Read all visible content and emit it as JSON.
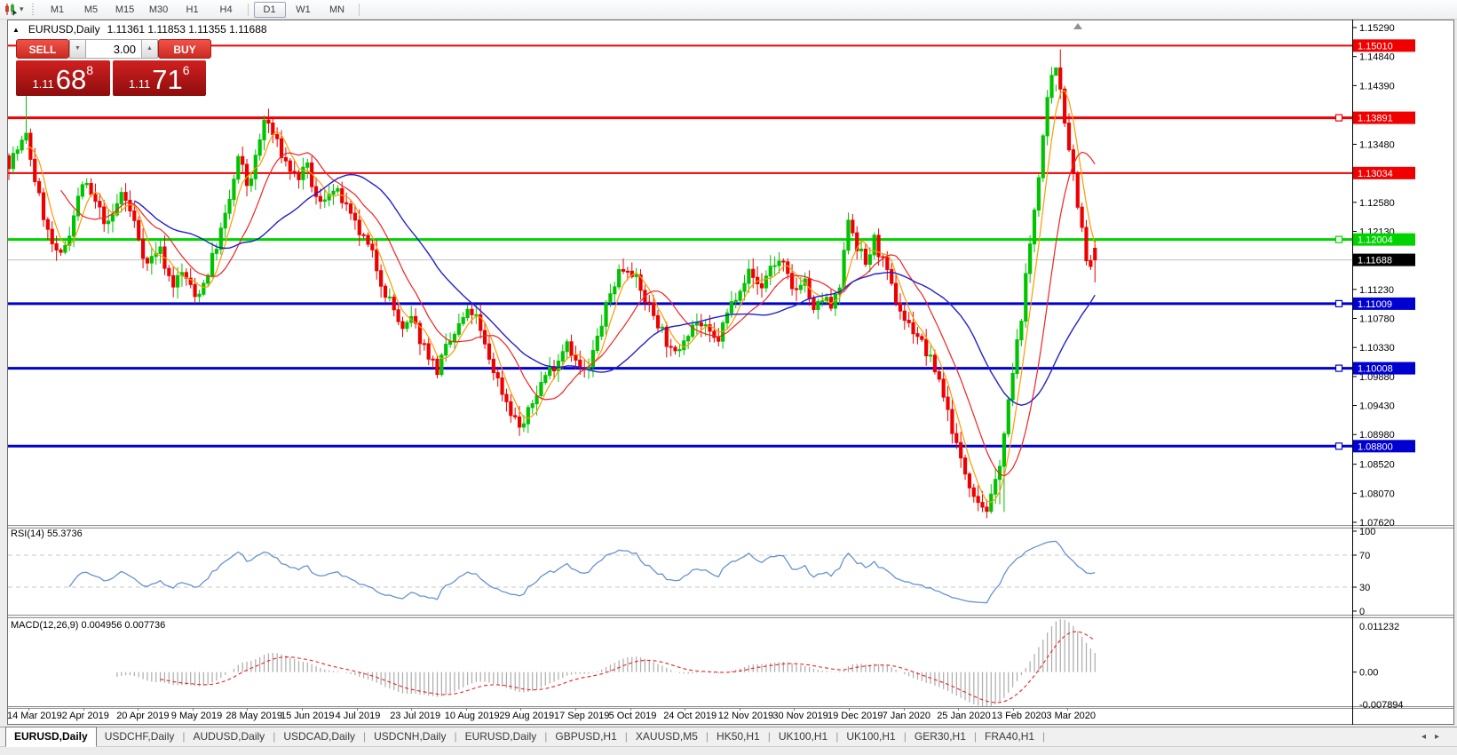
{
  "icons": {
    "collapse": "▲",
    "caret": "▾",
    "spin_up": "▲",
    "spin_down": "▼",
    "tab_left": "◂",
    "tab_right": "▸"
  },
  "toolbar": {
    "timeframes": [
      "M1",
      "M5",
      "M15",
      "M30",
      "H1",
      "H4",
      "D1",
      "W1",
      "MN"
    ],
    "active_timeframe": "D1"
  },
  "window": {
    "title_symbol": "EURUSD,Daily",
    "title_ohlc": "1.11361 1.11853 1.11355 1.11688"
  },
  "trade": {
    "sell_label": "SELL",
    "buy_label": "BUY",
    "volume": "3.00",
    "sell_price_prefix": "1.11",
    "sell_price_main": "68",
    "sell_price_sup": "8",
    "buy_price_prefix": "1.11",
    "buy_price_main": "71",
    "buy_price_sup": "6"
  },
  "price_axis": {
    "ticks": [
      "1.15290",
      "1.14840",
      "1.14390",
      "1.13480",
      "1.12580",
      "1.12130",
      "1.11230",
      "1.10780",
      "1.10330",
      "1.09880",
      "1.09430",
      "1.08980",
      "1.08520",
      "1.08070",
      "1.07620"
    ]
  },
  "levels": [
    {
      "text": "1.15010",
      "value": 1.1501,
      "color": "#f00000",
      "width": 2,
      "handle": false
    },
    {
      "text": "1.13891",
      "value": 1.13891,
      "color": "#f00000",
      "width": 3,
      "handle": true
    },
    {
      "text": "1.13034",
      "value": 1.13034,
      "color": "#f00000",
      "width": 2,
      "handle": false
    },
    {
      "text": "1.12004",
      "value": 1.12004,
      "color": "#00d400",
      "width": 3,
      "handle": true
    },
    {
      "text": "1.11009",
      "value": 1.11009,
      "color": "#0000d0",
      "width": 3,
      "handle": true
    },
    {
      "text": "1.10008",
      "value": 1.10008,
      "color": "#0000d0",
      "width": 3,
      "handle": true
    },
    {
      "text": "1.08800",
      "value": 1.088,
      "color": "#0000d0",
      "width": 3,
      "handle": true
    }
  ],
  "current_price": {
    "text": "1.11688",
    "value": 1.11688
  },
  "rsi": {
    "label": "RSI(14) 55.3736",
    "period": 14,
    "value": 55.3736,
    "scale": [
      {
        "text": "100",
        "v": 100
      },
      {
        "text": "70",
        "v": 70
      },
      {
        "text": "30",
        "v": 30
      },
      {
        "text": "0",
        "v": 0
      }
    ],
    "guides": [
      70,
      30
    ]
  },
  "macd": {
    "label": "MACD(12,26,9) 0.004956 0.007736",
    "fast": 12,
    "slow": 26,
    "signal": 9,
    "value": 0.004956,
    "signal_value": 0.007736,
    "scale": [
      {
        "text": "0.011232",
        "v": 0.011232
      },
      {
        "text": "0.00",
        "v": 0
      },
      {
        "text": "-0.007894",
        "v": -0.007894
      }
    ]
  },
  "dates": [
    "14 Mar 2019",
    "2 Apr 2019",
    "20 Apr 2019",
    "9 May 2019",
    "28 May 2019",
    "15 Jun 2019",
    "4 Jul 2019",
    "23 Jul 2019",
    "10 Aug 2019",
    "29 Aug 2019",
    "17 Sep 2019",
    "5 Oct 2019",
    "24 Oct 2019",
    "12 Nov 2019",
    "30 Nov 2019",
    "19 Dec 2019",
    "7 Jan 2020",
    "25 Jan 2020",
    "13 Feb 2020",
    "3 Mar 2020"
  ],
  "tabs": {
    "items": [
      "EURUSD,Daily",
      "USDCHF,Daily",
      "AUDUSD,Daily",
      "USDCAD,Daily",
      "USDCNH,Daily",
      "EURUSD,Daily",
      "GBPUSD,H1",
      "XAUUSD,M5",
      "HK50,H1",
      "UK100,H1",
      "UK100,H1",
      "GER30,H1",
      "FRA40,H1"
    ],
    "active_index": 0
  },
  "colors": {
    "bull": "#00c400",
    "bear": "#ee0000",
    "ma_fast": "#ff9900",
    "ma_mid": "#f02222",
    "ma_slow": "#2020cc",
    "rsi_line": "#6593cf",
    "macd_hist": "#ababab",
    "macd_signal": "#ee2222",
    "bid_line": "#c0c0c0"
  },
  "chart_data": {
    "type": "candlestick",
    "symbol": "EURUSD",
    "timeframe": "Daily",
    "last_ohlc": {
      "open": 1.11361,
      "high": 1.11853,
      "low": 1.11355,
      "close": 1.11688
    },
    "bars_count": 252,
    "y_axis_ticks": [
      1.1529,
      1.1484,
      1.1439,
      1.1348,
      1.1258,
      1.1213,
      1.1123,
      1.1078,
      1.1033,
      1.0988,
      1.0943,
      1.0898,
      1.0852,
      1.0807,
      1.0762
    ],
    "x_axis_labels": [
      "14 Mar 2019",
      "2 Apr 2019",
      "20 Apr 2019",
      "9 May 2019",
      "28 May 2019",
      "15 Jun 2019",
      "4 Jul 2019",
      "23 Jul 2019",
      "10 Aug 2019",
      "29 Aug 2019",
      "17 Sep 2019",
      "5 Oct 2019",
      "24 Oct 2019",
      "12 Nov 2019",
      "30 Nov 2019",
      "19 Dec 2019",
      "7 Jan 2020",
      "25 Jan 2020",
      "13 Feb 2020",
      "3 Mar 2020"
    ],
    "horizontal_levels": [
      1.1501,
      1.13891,
      1.13034,
      1.12004,
      1.11009,
      1.10008,
      1.088
    ],
    "indicators": {
      "rsi": {
        "period": 14,
        "last": 55.3736
      },
      "macd": {
        "fast": 12,
        "slow": 26,
        "signal": 9,
        "last": 0.004956,
        "last_signal": 0.007736
      },
      "moving_averages": [
        {
          "color": "#ff9900",
          "period": 5
        },
        {
          "color": "#f02222",
          "period": 13
        },
        {
          "color": "#2020cc",
          "period": 30
        }
      ]
    },
    "price_path": [
      [
        0.0,
        1.132
      ],
      [
        0.01,
        1.1345
      ],
      [
        0.016,
        1.136
      ],
      [
        0.025,
        1.1285
      ],
      [
        0.036,
        1.121
      ],
      [
        0.046,
        1.1165
      ],
      [
        0.056,
        1.1215
      ],
      [
        0.068,
        1.129
      ],
      [
        0.08,
        1.1255
      ],
      [
        0.092,
        1.122
      ],
      [
        0.104,
        1.1275
      ],
      [
        0.116,
        1.1225
      ],
      [
        0.127,
        1.116
      ],
      [
        0.138,
        1.119
      ],
      [
        0.15,
        1.113
      ],
      [
        0.161,
        1.115
      ],
      [
        0.171,
        1.111
      ],
      [
        0.18,
        1.1135
      ],
      [
        0.19,
        1.1185
      ],
      [
        0.201,
        1.1245
      ],
      [
        0.212,
        1.133
      ],
      [
        0.22,
        1.128
      ],
      [
        0.228,
        1.133
      ],
      [
        0.236,
        1.1392
      ],
      [
        0.245,
        1.1355
      ],
      [
        0.255,
        1.132
      ],
      [
        0.265,
        1.1295
      ],
      [
        0.275,
        1.131
      ],
      [
        0.285,
        1.125
      ],
      [
        0.295,
        1.1278
      ],
      [
        0.305,
        1.1268
      ],
      [
        0.315,
        1.1232
      ],
      [
        0.325,
        1.1205
      ],
      [
        0.335,
        1.1175
      ],
      [
        0.345,
        1.1125
      ],
      [
        0.355,
        1.109
      ],
      [
        0.363,
        1.1055
      ],
      [
        0.371,
        1.1078
      ],
      [
        0.379,
        1.1045
      ],
      [
        0.387,
        1.1022
      ],
      [
        0.394,
        1.0996
      ],
      [
        0.402,
        1.1028
      ],
      [
        0.41,
        1.1052
      ],
      [
        0.419,
        1.108
      ],
      [
        0.428,
        1.109
      ],
      [
        0.437,
        1.104
      ],
      [
        0.446,
        1.1
      ],
      [
        0.455,
        1.0962
      ],
      [
        0.464,
        1.0928
      ],
      [
        0.472,
        1.0906
      ],
      [
        0.48,
        1.0938
      ],
      [
        0.488,
        1.0972
      ],
      [
        0.496,
        1.0996
      ],
      [
        0.505,
        1.1012
      ],
      [
        0.514,
        1.1046
      ],
      [
        0.523,
        1.1005
      ],
      [
        0.532,
        1.099
      ],
      [
        0.542,
        1.1048
      ],
      [
        0.552,
        1.1108
      ],
      [
        0.562,
        1.1152
      ],
      [
        0.572,
        1.116
      ],
      [
        0.582,
        1.1118
      ],
      [
        0.592,
        1.109
      ],
      [
        0.602,
        1.1058
      ],
      [
        0.612,
        1.1015
      ],
      [
        0.622,
        1.1052
      ],
      [
        0.632,
        1.1075
      ],
      [
        0.642,
        1.1058
      ],
      [
        0.652,
        1.104
      ],
      [
        0.662,
        1.1088
      ],
      [
        0.672,
        1.1126
      ],
      [
        0.682,
        1.115
      ],
      [
        0.692,
        1.1124
      ],
      [
        0.702,
        1.1162
      ],
      [
        0.712,
        1.1165
      ],
      [
        0.722,
        1.1115
      ],
      [
        0.732,
        1.1145
      ],
      [
        0.741,
        1.1085
      ],
      [
        0.75,
        1.1112
      ],
      [
        0.758,
        1.1092
      ],
      [
        0.766,
        1.113
      ],
      [
        0.773,
        1.1238
      ],
      [
        0.781,
        1.119
      ],
      [
        0.789,
        1.1162
      ],
      [
        0.797,
        1.12
      ],
      [
        0.806,
        1.1158
      ],
      [
        0.816,
        1.111
      ],
      [
        0.826,
        1.1072
      ],
      [
        0.836,
        1.1055
      ],
      [
        0.846,
        1.102
      ],
      [
        0.856,
        1.0988
      ],
      [
        0.866,
        1.0925
      ],
      [
        0.876,
        1.0858
      ],
      [
        0.886,
        1.0818
      ],
      [
        0.895,
        1.079
      ],
      [
        0.902,
        1.0782
      ],
      [
        0.909,
        1.0825
      ],
      [
        0.916,
        1.0895
      ],
      [
        0.924,
        1.0988
      ],
      [
        0.932,
        1.108
      ],
      [
        0.94,
        1.119
      ],
      [
        0.948,
        1.13
      ],
      [
        0.955,
        1.14
      ],
      [
        0.961,
        1.1455
      ],
      [
        0.966,
        1.1462
      ],
      [
        0.971,
        1.14
      ],
      [
        0.977,
        1.1335
      ],
      [
        0.983,
        1.127
      ],
      [
        0.988,
        1.1215
      ],
      [
        0.993,
        1.1152
      ],
      [
        1.0,
        1.1169
      ]
    ]
  }
}
